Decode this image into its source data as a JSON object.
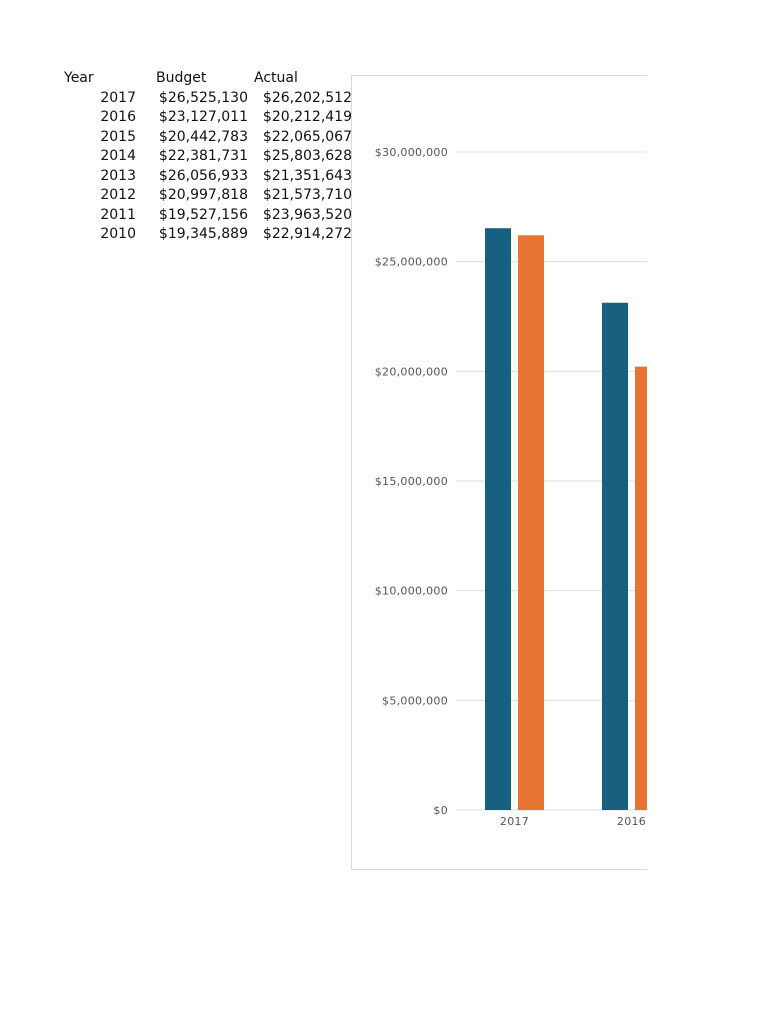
{
  "table": {
    "headers": {
      "year": "Year",
      "budget": "Budget",
      "actual": "Actual"
    },
    "rows": [
      {
        "year": "2017",
        "budget": "$26,525,130",
        "actual": "$26,202,512"
      },
      {
        "year": "2016",
        "budget": "$23,127,011",
        "actual": "$20,212,419"
      },
      {
        "year": "2015",
        "budget": "$20,442,783",
        "actual": "$22,065,067"
      },
      {
        "year": "2014",
        "budget": "$22,381,731",
        "actual": "$25,803,628"
      },
      {
        "year": "2013",
        "budget": "$26,056,933",
        "actual": "$21,351,643"
      },
      {
        "year": "2012",
        "budget": "$20,997,818",
        "actual": "$21,573,710"
      },
      {
        "year": "2011",
        "budget": "$19,527,156",
        "actual": "$23,963,520"
      },
      {
        "year": "2010",
        "budget": "$19,345,889",
        "actual": "$22,914,272"
      }
    ]
  },
  "chart_data": {
    "type": "bar",
    "categories": [
      "2017",
      "2016"
    ],
    "series": [
      {
        "values": [
          26525130,
          23127011
        ],
        "color": "#17607f"
      },
      {
        "values": [
          26202512,
          20212419
        ],
        "color": "#e87432"
      }
    ],
    "ylim": [
      0,
      30000000
    ],
    "yticks": [
      {
        "value": 0,
        "label": "$0"
      },
      {
        "value": 5000000,
        "label": "$5,000,000"
      },
      {
        "value": 10000000,
        "label": "$10,000,000"
      },
      {
        "value": 15000000,
        "label": "$15,000,000"
      },
      {
        "value": 20000000,
        "label": "$20,000,000"
      },
      {
        "value": 25000000,
        "label": "$25,000,000"
      },
      {
        "value": 30000000,
        "label": "$30,000,000"
      }
    ],
    "grid": true,
    "gridColor": "#dddddd"
  }
}
